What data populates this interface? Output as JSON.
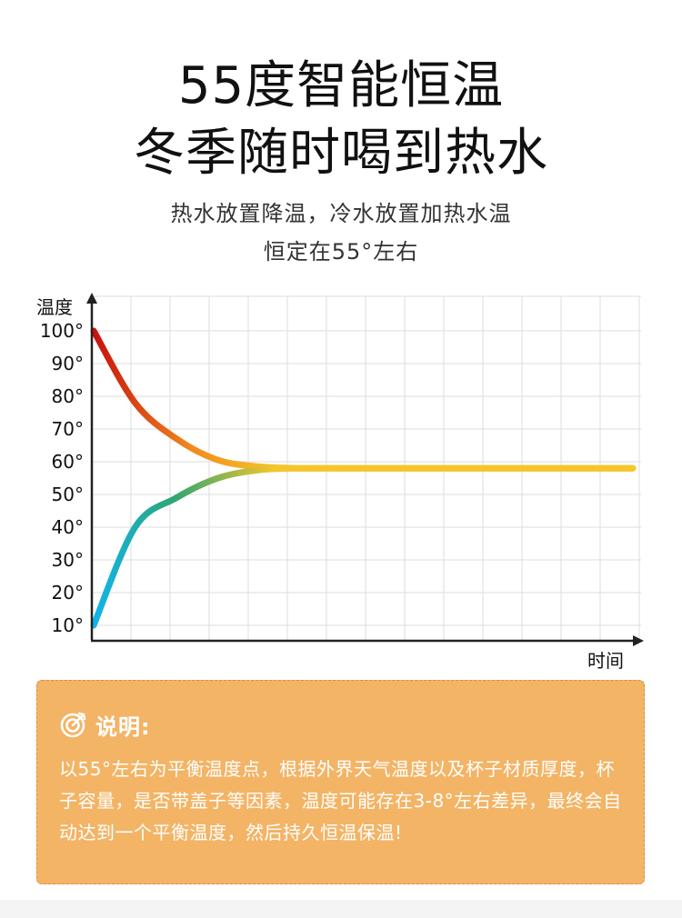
{
  "header": {
    "title_lines": [
      "55度智能恒温",
      "冬季随时喝到热水"
    ],
    "subtitle_lines": [
      "热水放置降温，冷水放置加热水温",
      "恒定在55°左右"
    ]
  },
  "chart_data": {
    "type": "line",
    "title": "",
    "ylabel": "温度",
    "xlabel": "时间",
    "ylim": [
      10,
      100
    ],
    "yticks": [
      "100°",
      "90°",
      "80°",
      "70°",
      "60°",
      "50°",
      "40°",
      "30°",
      "20°",
      "10°"
    ],
    "grid": true,
    "series": [
      {
        "values": [
          100,
          78,
          67,
          60.5,
          58.5,
          58,
          58,
          58,
          58,
          58,
          58,
          58,
          58,
          58
        ],
        "color_start": "#c80f0f",
        "color_end": "#f5c52a"
      },
      {
        "values": [
          10,
          40,
          49,
          55,
          57.5,
          58,
          58,
          58,
          58,
          58,
          58,
          58,
          58,
          58
        ],
        "color_start": "#10b4ee",
        "color_end": "#f5c52a"
      }
    ],
    "colors": {
      "hot_start": "#c80f0f",
      "hot_mid": "#f08a1c",
      "cold_start": "#10b4ee",
      "cold_mid": "#2fa673",
      "steady": "#f5c52a",
      "axis": "#222222",
      "grid": "#dddddd"
    }
  },
  "note": {
    "icon": "target-icon",
    "title": "说明:",
    "body": "以55°左右为平衡温度点，根据外界天气温度以及杯子材质厚度，杯子容量，是否带盖子等因素，温度可能存在3-8°左右差异，最终会自动达到一个平衡温度，然后持久恒温保温!",
    "bg_color": "#f3b466",
    "border_color": "#dc8e3e"
  }
}
